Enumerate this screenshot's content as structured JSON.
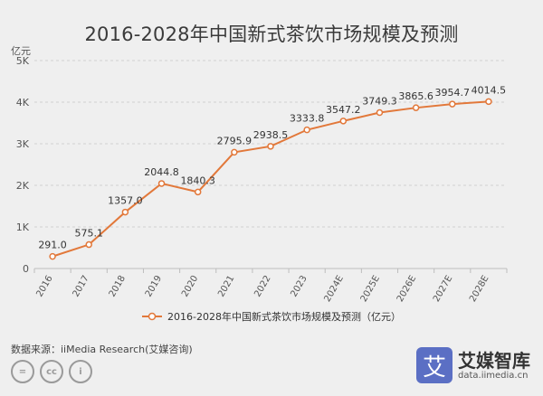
{
  "title": "2016-2028年中国新式茶饮市场规模及预测",
  "unit": "亿元",
  "source": "数据来源：iiMedia Research(艾媒咨询)",
  "license_icons": [
    "=",
    "cc",
    "i"
  ],
  "brand": {
    "name": "艾媒智库",
    "url": "data.iimedia.cn",
    "logo_glyph": "艾",
    "color": "#5b6fc4"
  },
  "colors": {
    "line": "#e2783a",
    "grid": "#d2d2d2"
  },
  "chart_data": {
    "type": "line",
    "title": "2016-2028年中国新式茶饮市场规模及预测",
    "ylabel": "亿元",
    "ylim": [
      0,
      5000
    ],
    "yticks": [
      {
        "value": 0,
        "label": "0"
      },
      {
        "value": 1000,
        "label": "1K"
      },
      {
        "value": 2000,
        "label": "2K"
      },
      {
        "value": 3000,
        "label": "3K"
      },
      {
        "value": 4000,
        "label": "4K"
      },
      {
        "value": 5000,
        "label": "5K"
      }
    ],
    "grid": true,
    "legend": "bottom",
    "categories": [
      "2016",
      "2017",
      "2018",
      "2019",
      "2020",
      "2021",
      "2022",
      "2023",
      "2024E",
      "2025E",
      "2026E",
      "2027E",
      "2028E"
    ],
    "series": [
      {
        "name": "2016-2028年中国新式茶饮市场规模及预测（亿元）",
        "values": [
          291.0,
          575.1,
          1357.0,
          2044.8,
          1840.3,
          2795.9,
          2938.5,
          3333.8,
          3547.2,
          3749.3,
          3865.6,
          3954.7,
          4014.5
        ],
        "labels": [
          "291.0",
          "575.1",
          "1357.0",
          "2044.8",
          "1840.3",
          "2795.9",
          "2938.5",
          "3333.8",
          "3547.2",
          "3749.3",
          "3865.6",
          "3954.7",
          "4014.5"
        ]
      }
    ]
  }
}
